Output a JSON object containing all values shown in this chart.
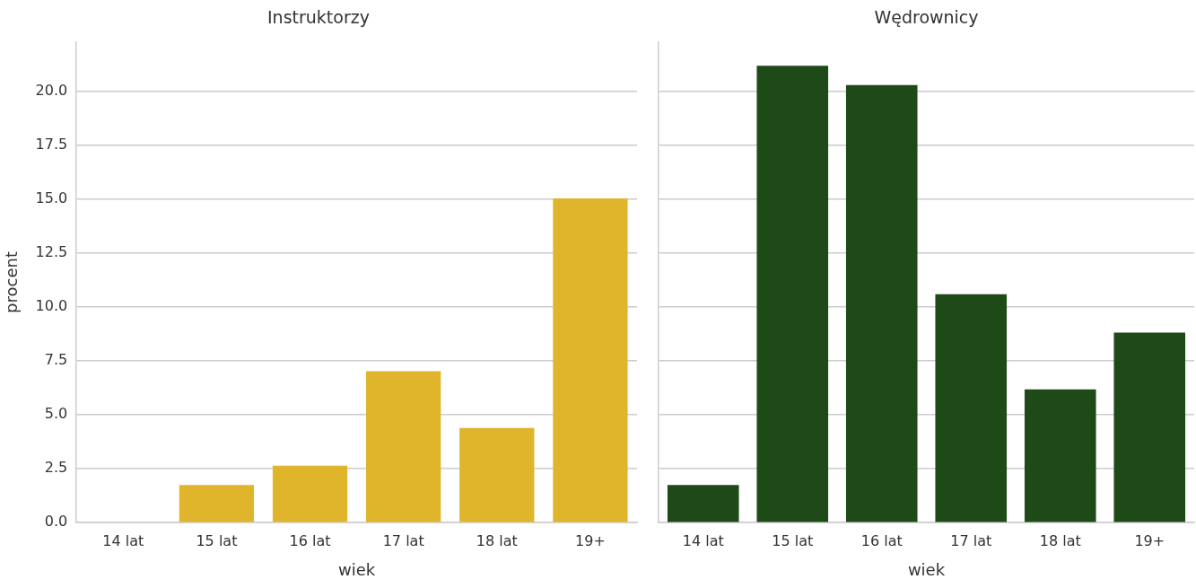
{
  "chart_data": [
    {
      "type": "bar",
      "title": "Instruktorzy",
      "xlabel": "wiek",
      "ylabel": "procent",
      "categories": [
        "14 lat",
        "15 lat",
        "16 lat",
        "17 lat",
        "18 lat",
        "19+"
      ],
      "values": [
        0,
        1.75,
        2.64,
        7.03,
        4.39,
        15.04
      ],
      "color": "#e0b52c",
      "ylim": [
        0,
        22.3
      ],
      "yticks": [
        {
          "value": 0,
          "label": "0.0"
        },
        {
          "value": 2.5,
          "label": "2.5"
        },
        {
          "value": 5,
          "label": "5.0"
        },
        {
          "value": 7.5,
          "label": "7.5"
        },
        {
          "value": 10,
          "label": "10.0"
        },
        {
          "value": 12.5,
          "label": "12.5"
        },
        {
          "value": 15,
          "label": "15.0"
        },
        {
          "value": 17.5,
          "label": "17.5"
        },
        {
          "value": 20,
          "label": "20.0"
        }
      ],
      "grid": "y",
      "legend": false
    },
    {
      "type": "bar",
      "title": "Wędrownicy",
      "xlabel": "wiek",
      "categories": [
        "14 lat",
        "15 lat",
        "16 lat",
        "17 lat",
        "18 lat",
        "19+"
      ],
      "values": [
        1.75,
        21.2,
        20.3,
        10.6,
        6.18,
        8.82
      ],
      "color": "#1e4a18",
      "ylim": [
        0,
        22.3
      ],
      "yticks": [
        0,
        2.5,
        5,
        7.5,
        10,
        12.5,
        15,
        17.5,
        20
      ],
      "grid": "y",
      "legend": false,
      "tick_labels": "x"
    }
  ]
}
